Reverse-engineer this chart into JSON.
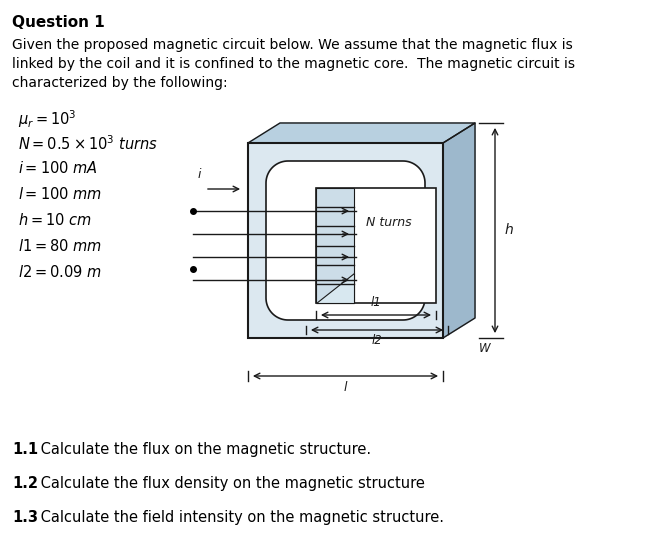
{
  "title": "Question 1",
  "para1_line1": "Given the proposed magnetic circuit below. We assume that the magnetic flux is",
  "para1_line2": "linked by the coil and it is confined to the magnetic core.  The magnetic circuit is",
  "para1_line3": "characterized by the following:",
  "questions": [
    [
      "1.1",
      " Calculate the flux on the magnetic structure."
    ],
    [
      "1.2",
      " Calculate the flux density on the magnetic structure"
    ],
    [
      "1.3",
      " Calculate the field intensity on the magnetic structure."
    ]
  ],
  "bg_color": "#ffffff",
  "text_color": "#000000",
  "diagram_face_color": "#dce8f0",
  "diagram_dark_color": "#1a1a1a",
  "diagram_side_color": "#9db8cc",
  "diagram_top_color": "#b8d0e0",
  "inner_bg": "#eef4f8",
  "coil_fill": "#ccdde8"
}
